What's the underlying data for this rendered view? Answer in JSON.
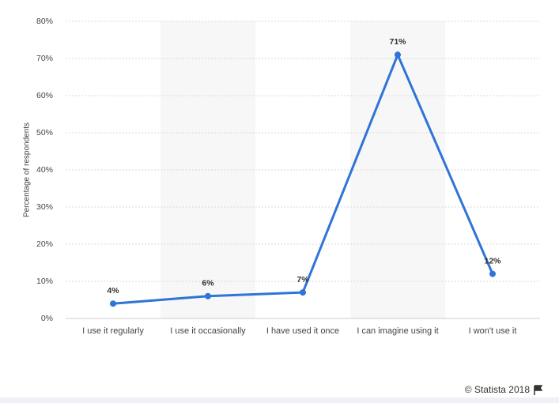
{
  "chart_data": {
    "type": "line",
    "y_label": "Percentage of respondents",
    "categories": [
      "I use it regularly",
      "I use it occasionally",
      "I have used it once",
      "I can imagine using it",
      "I won't use it"
    ],
    "series": [
      {
        "values": [
          4,
          6,
          7,
          71,
          12
        ],
        "value_labels": [
          "4%",
          "6%",
          "7%",
          "71%",
          "12%"
        ],
        "color": "#2f74d6"
      }
    ],
    "ylim": [
      0,
      80
    ],
    "yticks": [
      {
        "value": 0,
        "label": "0%"
      },
      {
        "value": 10,
        "label": "10%"
      },
      {
        "value": 20,
        "label": "20%"
      },
      {
        "value": 30,
        "label": "30%"
      },
      {
        "value": 40,
        "label": "40%"
      },
      {
        "value": 50,
        "label": "50%"
      },
      {
        "value": 60,
        "label": "60%"
      },
      {
        "value": 70,
        "label": "70%"
      },
      {
        "value": 80,
        "label": "80%"
      }
    ],
    "grid": true,
    "credit": "© Statista 2018"
  }
}
